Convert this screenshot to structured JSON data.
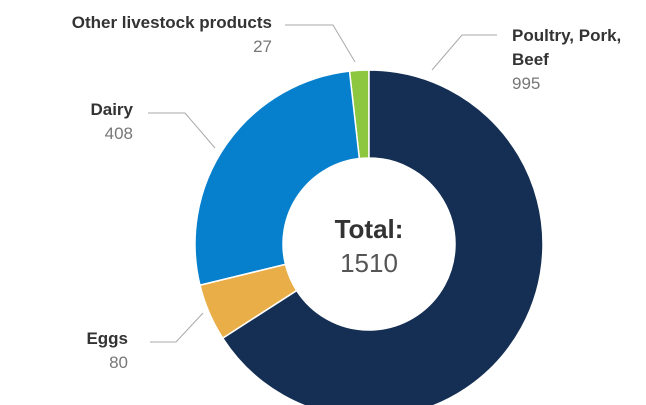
{
  "chart_data": {
    "type": "donut",
    "categories": [
      "Poultry, Pork, Beef",
      "Eggs",
      "Dairy",
      "Other livestock products"
    ],
    "values": [
      995,
      80,
      408,
      27
    ],
    "colors": [
      "#142f53",
      "#eaae48",
      "#0680cd",
      "#8dc63f"
    ],
    "center_label": "Total:",
    "center_value": 1510
  }
}
